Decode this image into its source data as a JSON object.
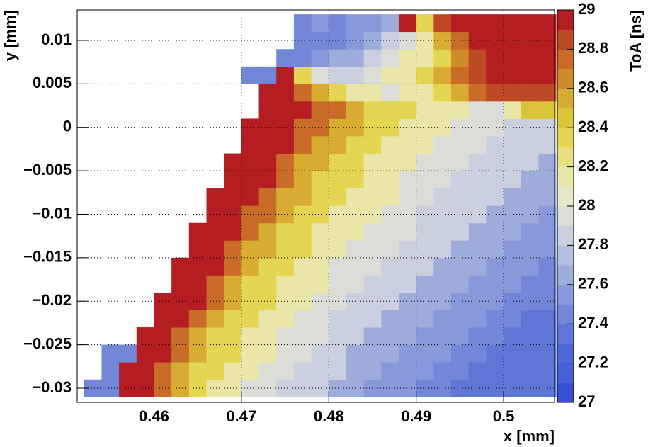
{
  "chart_data": {
    "type": "heatmap",
    "x_label": "x [mm]",
    "y_label": "y [mm]",
    "z_label": "ToA [ns]",
    "xlim": [
      0.45121,
      0.50583
    ],
    "ylim": [
      -0.03163,
      0.0135
    ],
    "zlim": [
      27,
      29
    ],
    "xticks": [
      0.46,
      0.47,
      0.48,
      0.49,
      0.5
    ],
    "yticks": [
      {
        "value": -0.03,
        "label": "−0.03"
      },
      {
        "value": -0.025,
        "label": "−0.025"
      },
      {
        "value": -0.02,
        "label": "−0.02"
      },
      {
        "value": -0.015,
        "label": "−0.015"
      },
      {
        "value": -0.01,
        "label": "−0.01"
      },
      {
        "value": -0.005,
        "label": "−0.005"
      },
      0,
      0.005,
      0.01
    ],
    "zticks": [
      27,
      27.2,
      27.4,
      27.6,
      27.8,
      28,
      28.2,
      28.4,
      28.6,
      28.8,
      29
    ],
    "grid": true,
    "palette": [
      "#3a4fd8",
      "#4660d6",
      "#5068d4",
      "#5f76d6",
      "#7386d8",
      "#8898da",
      "#9eacdc",
      "#b4bee0",
      "#cbd0e0",
      "#dcdcd8",
      "#e6e6c8",
      "#eae6a8",
      "#e8e080",
      "#e4d650",
      "#dcc438",
      "#d8ac30",
      "#d08c2a",
      "#c86c28",
      "#bc4a24",
      "#b41e22"
    ],
    "xbins": [
      0.452,
      0.454,
      0.456,
      0.458,
      0.46,
      0.462,
      0.464,
      0.466,
      0.468,
      0.47,
      0.472,
      0.474,
      0.476,
      0.478,
      0.48,
      0.482,
      0.484,
      0.486,
      0.488,
      0.49,
      0.492,
      0.494,
      0.496,
      0.498,
      0.5,
      0.502,
      0.504,
      0.506
    ],
    "ybins": [
      -0.031,
      -0.029,
      -0.027,
      -0.025,
      -0.023,
      -0.021,
      -0.019,
      -0.017,
      -0.015,
      -0.013,
      -0.011,
      -0.009,
      -0.007,
      -0.005,
      -0.003,
      -0.001,
      0.001,
      0.003,
      0.005,
      0.007,
      0.009,
      0.011,
      0.013
    ],
    "z": [
      [
        27.4,
        27.4,
        29,
        29,
        28.7,
        28.5,
        28.3,
        28.1,
        28.1,
        27.95,
        27.95,
        27.8,
        27.8,
        27.8,
        27.65,
        27.65,
        27.5,
        27.5,
        27.5,
        27.4,
        27.4,
        27.3,
        27.3,
        27.3,
        27.3,
        27.3,
        27.3
      ],
      [
        null,
        27.4,
        29,
        29,
        28.7,
        28.5,
        28.3,
        28.3,
        28.1,
        28.1,
        27.95,
        27.95,
        27.8,
        27.8,
        27.8,
        27.65,
        27.65,
        27.5,
        27.5,
        27.5,
        27.4,
        27.4,
        27.3,
        27.3,
        27.3,
        27.3,
        27.3
      ],
      [
        null,
        27.4,
        27.4,
        29,
        29,
        28.7,
        28.5,
        28.3,
        28.3,
        28.1,
        28.1,
        27.95,
        27.95,
        27.8,
        27.8,
        27.65,
        27.65,
        27.65,
        27.5,
        27.5,
        27.5,
        27.4,
        27.4,
        27.3,
        27.3,
        27.3,
        27.3
      ],
      [
        null,
        null,
        null,
        29,
        29,
        28.7,
        28.5,
        28.3,
        28.3,
        28.1,
        28.1,
        27.95,
        27.95,
        27.95,
        27.8,
        27.8,
        27.65,
        27.65,
        27.65,
        27.5,
        27.5,
        27.5,
        27.4,
        27.4,
        27.3,
        27.3,
        27.3
      ],
      [
        null,
        null,
        null,
        null,
        29,
        29,
        28.7,
        28.5,
        28.3,
        28.3,
        28.1,
        28.1,
        27.95,
        27.95,
        27.8,
        27.8,
        27.8,
        27.65,
        27.65,
        27.65,
        27.5,
        27.5,
        27.5,
        27.4,
        27.4,
        27.3,
        27.3
      ],
      [
        null,
        null,
        null,
        null,
        29,
        29,
        29,
        28.7,
        28.5,
        28.3,
        28.3,
        28.1,
        28.1,
        27.95,
        27.95,
        27.8,
        27.8,
        27.8,
        27.65,
        27.65,
        27.65,
        27.5,
        27.5,
        27.5,
        27.4,
        27.4,
        27.4
      ],
      [
        null,
        null,
        null,
        null,
        null,
        29,
        29,
        28.7,
        28.5,
        28.3,
        28.3,
        28.1,
        28.1,
        28.1,
        27.95,
        27.95,
        27.8,
        27.8,
        27.8,
        27.65,
        27.65,
        27.65,
        27.5,
        27.5,
        27.5,
        27.4,
        27.4
      ],
      [
        null,
        null,
        null,
        null,
        null,
        29,
        29,
        29,
        28.7,
        28.5,
        28.3,
        28.3,
        28.1,
        28.1,
        27.95,
        27.95,
        27.95,
        27.8,
        27.8,
        27.8,
        27.65,
        27.65,
        27.65,
        27.5,
        27.5,
        27.5,
        27.4
      ],
      [
        null,
        null,
        null,
        null,
        null,
        null,
        29,
        29,
        28.7,
        28.5,
        28.5,
        28.3,
        28.3,
        28.1,
        28.1,
        27.95,
        27.95,
        27.95,
        27.8,
        27.8,
        27.8,
        27.65,
        27.65,
        27.65,
        27.5,
        27.5,
        27.5
      ],
      [
        null,
        null,
        null,
        null,
        null,
        null,
        29,
        29,
        29,
        28.7,
        28.5,
        28.3,
        28.3,
        28.1,
        28.1,
        28.1,
        27.95,
        27.95,
        27.95,
        27.8,
        27.8,
        27.8,
        27.65,
        27.65,
        27.65,
        27.5,
        27.5
      ],
      [
        null,
        null,
        null,
        null,
        null,
        null,
        null,
        29,
        29,
        28.7,
        28.7,
        28.5,
        28.3,
        28.3,
        28.1,
        28.1,
        28.1,
        27.95,
        27.95,
        27.8,
        27.8,
        27.8,
        27.8,
        27.65,
        27.65,
        27.65,
        27.5
      ],
      [
        null,
        null,
        null,
        null,
        null,
        null,
        null,
        29,
        29,
        29,
        28.7,
        28.5,
        28.5,
        28.3,
        28.3,
        28.1,
        28.1,
        28.1,
        27.95,
        27.95,
        27.8,
        27.8,
        27.8,
        27.8,
        27.65,
        27.65,
        27.65
      ],
      [
        null,
        null,
        null,
        null,
        null,
        null,
        null,
        null,
        29,
        29,
        29,
        28.7,
        28.5,
        28.3,
        28.3,
        28.3,
        28.1,
        28.1,
        27.95,
        27.95,
        27.95,
        27.8,
        27.8,
        27.8,
        27.8,
        27.65,
        27.65
      ],
      [
        null,
        null,
        null,
        null,
        null,
        null,
        null,
        null,
        29,
        29,
        29,
        28.7,
        28.5,
        28.5,
        28.3,
        28.3,
        28.1,
        28.1,
        28.1,
        27.95,
        27.95,
        27.95,
        27.8,
        27.8,
        27.8,
        27.8,
        27.65
      ],
      [
        null,
        null,
        null,
        null,
        null,
        null,
        null,
        null,
        null,
        29,
        29,
        29,
        28.7,
        28.5,
        28.5,
        28.3,
        28.3,
        28.1,
        28.1,
        28.1,
        27.95,
        27.95,
        27.95,
        27.8,
        27.8,
        27.8,
        27.8
      ],
      [
        null,
        null,
        null,
        null,
        null,
        null,
        null,
        null,
        null,
        29,
        29,
        29,
        28.7,
        28.7,
        28.5,
        28.5,
        28.3,
        28.3,
        28.1,
        28.1,
        28.1,
        27.95,
        27.95,
        27.95,
        27.8,
        27.8,
        27.8
      ],
      [
        null,
        null,
        null,
        null,
        null,
        null,
        null,
        null,
        null,
        null,
        29,
        29,
        29,
        28.7,
        28.7,
        28.5,
        28.3,
        28.3,
        28.3,
        28.1,
        28.1,
        28.1,
        27.95,
        27.95,
        28.1,
        28.4,
        28.4
      ],
      [
        null,
        null,
        null,
        null,
        null,
        null,
        null,
        null,
        null,
        null,
        29,
        29,
        28.7,
        28.5,
        28.3,
        28.1,
        28.1,
        27.95,
        28.1,
        28.1,
        28.3,
        28.5,
        28.7,
        28.8,
        28.8,
        28.8,
        28.8
      ],
      [
        null,
        null,
        null,
        null,
        null,
        null,
        null,
        null,
        null,
        27.4,
        27.4,
        29,
        28.3,
        27.95,
        27.8,
        27.8,
        27.95,
        28.1,
        28.1,
        28.3,
        28.5,
        28.7,
        28.8,
        28.9,
        28.9,
        29,
        29
      ],
      [
        null,
        null,
        null,
        null,
        null,
        null,
        null,
        null,
        null,
        null,
        null,
        27.4,
        27.4,
        27.5,
        27.65,
        27.65,
        27.8,
        27.95,
        28.1,
        28.1,
        28.3,
        28.6,
        28.8,
        28.9,
        29,
        29,
        29
      ],
      [
        null,
        null,
        null,
        null,
        null,
        null,
        null,
        null,
        null,
        null,
        null,
        null,
        27.4,
        27.4,
        27.4,
        27.5,
        27.65,
        27.8,
        27.95,
        28.1,
        28.5,
        28.7,
        29,
        29,
        29,
        29,
        29
      ],
      [
        null,
        null,
        null,
        null,
        null,
        null,
        null,
        null,
        null,
        null,
        null,
        null,
        27.4,
        27.5,
        27.4,
        27.5,
        27.5,
        27.65,
        29,
        28.3,
        28.8,
        28.9,
        29,
        29,
        29,
        29,
        29
      ]
    ]
  }
}
